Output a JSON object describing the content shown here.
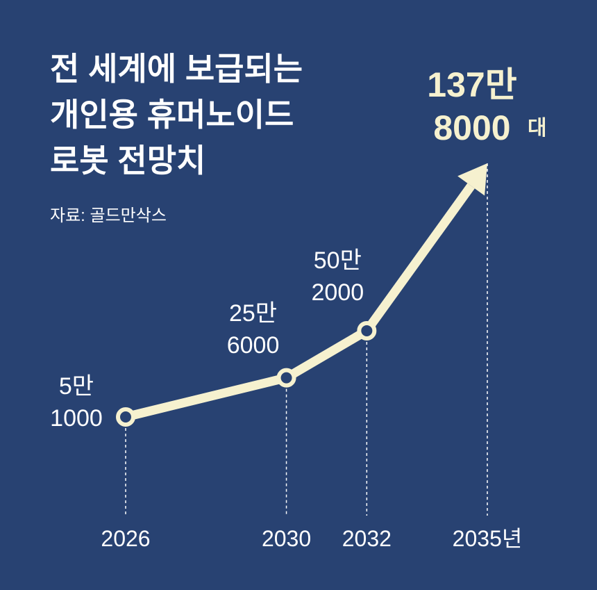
{
  "title": "전 세계에 보급되는\n개인용 휴머노이드\n로봇 전망치",
  "source": "자료: 골드만삭스",
  "chart_data": {
    "type": "line",
    "x": [
      2026,
      2030,
      2032,
      2035
    ],
    "values": [
      51000,
      256000,
      502000,
      1378000
    ],
    "value_labels": [
      "5만\n1000",
      "25만\n6000",
      "50만\n2000",
      "137만\n8000"
    ],
    "value_unit": "대",
    "xticks": [
      2026,
      2030,
      2032,
      {
        "value": 2035,
        "label": "2035년"
      }
    ],
    "color": "#f6f1cf"
  }
}
